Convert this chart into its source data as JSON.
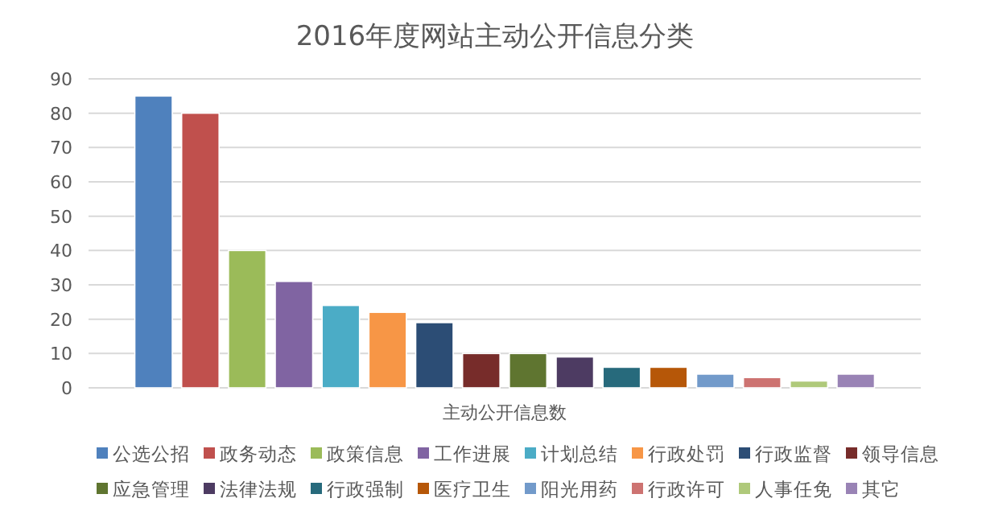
{
  "chart_data": {
    "type": "bar",
    "title": "2016年度网站主动公开信息分类",
    "categories": [
      "主动公开信息数"
    ],
    "ylim": [
      0,
      90
    ],
    "yticks": [
      0,
      10,
      20,
      30,
      40,
      50,
      60,
      70,
      80,
      90
    ],
    "grid": "y",
    "legend": "bottom",
    "series": [
      {
        "name": "公选公招",
        "color": "#4f81bd",
        "values": [
          85
        ]
      },
      {
        "name": "政务动态",
        "color": "#c0504d",
        "values": [
          80
        ]
      },
      {
        "name": "政策信息",
        "color": "#9bbb59",
        "values": [
          40
        ]
      },
      {
        "name": "工作进展",
        "color": "#8064a2",
        "values": [
          31
        ]
      },
      {
        "name": "计划总结",
        "color": "#4bacc6",
        "values": [
          24
        ]
      },
      {
        "name": "行政处罚",
        "color": "#f79646",
        "values": [
          22
        ]
      },
      {
        "name": "行政监督",
        "color": "#2c4d75",
        "values": [
          19
        ]
      },
      {
        "name": "领导信息",
        "color": "#772c2a",
        "values": [
          10
        ]
      },
      {
        "name": "应急管理",
        "color": "#5f7530",
        "values": [
          10
        ]
      },
      {
        "name": "法律法规",
        "color": "#4d3b62",
        "values": [
          9
        ]
      },
      {
        "name": "行政强制",
        "color": "#276a7c",
        "values": [
          6
        ]
      },
      {
        "name": "医疗卫生",
        "color": "#b65708",
        "values": [
          6
        ]
      },
      {
        "name": "阳光用药",
        "color": "#729aca",
        "values": [
          4
        ]
      },
      {
        "name": "行政许可",
        "color": "#cd7371",
        "values": [
          3
        ]
      },
      {
        "name": "人事任免",
        "color": "#afc97a",
        "values": [
          2
        ]
      },
      {
        "name": "其它",
        "color": "#9983b5",
        "values": [
          4
        ]
      }
    ]
  }
}
